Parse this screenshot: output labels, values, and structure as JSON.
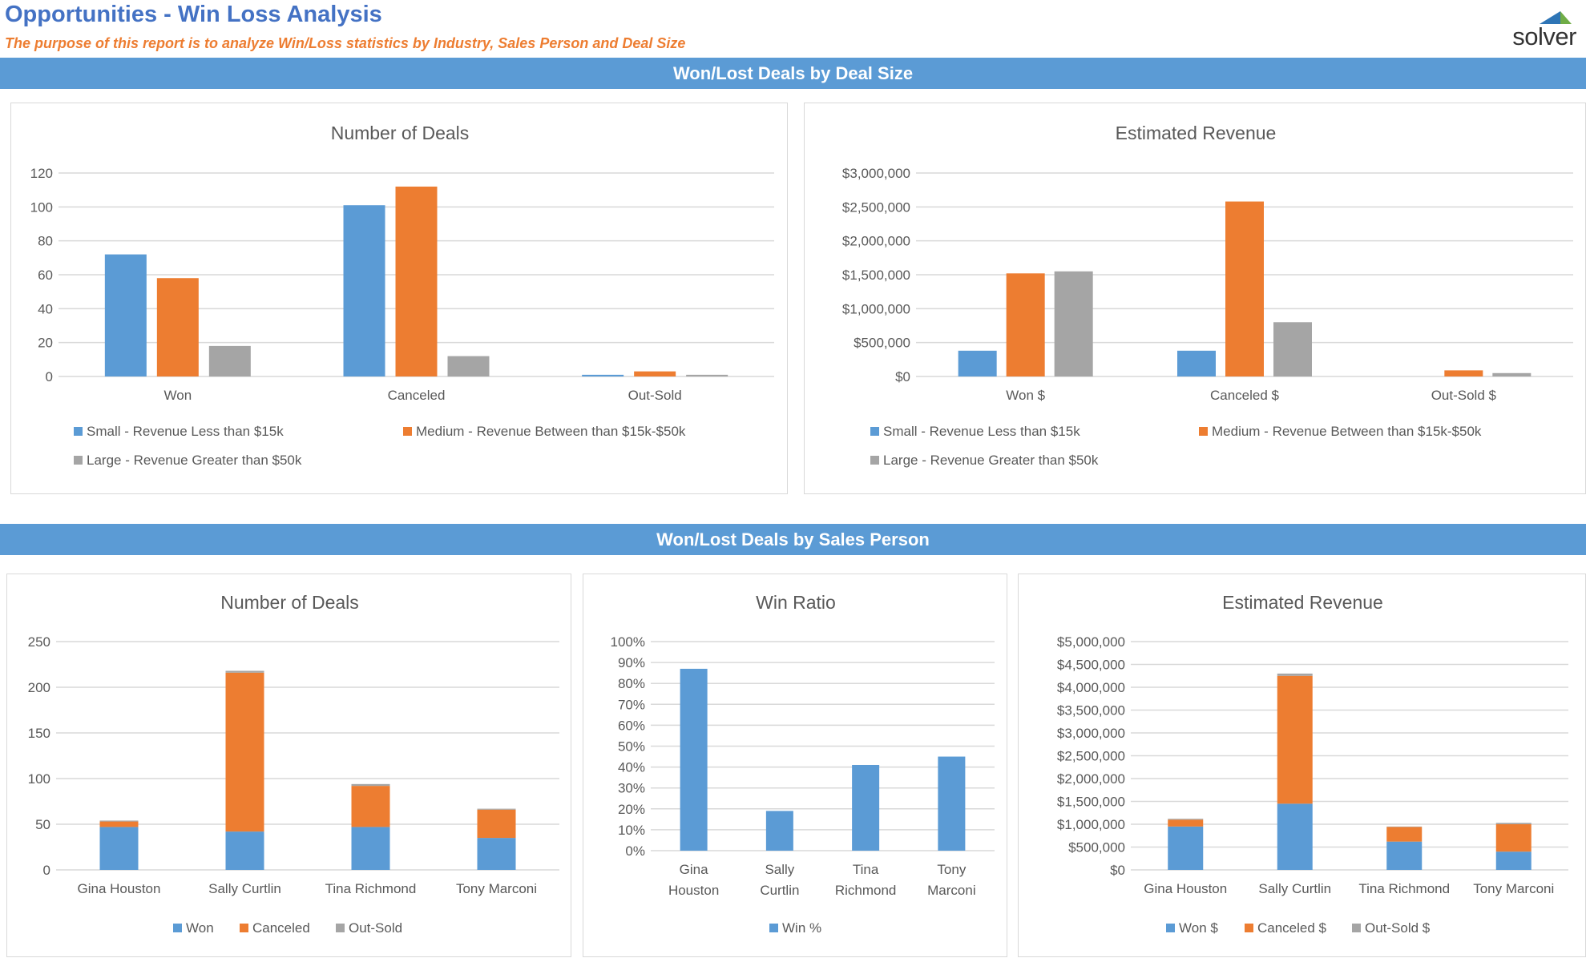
{
  "header": {
    "title": "Opportunities - Win Loss Analysis",
    "subtitle": "The purpose of this report is to analyze Win/Loss statistics by Industry, Sales Person and Deal Size",
    "logo_text": "solver"
  },
  "sections": {
    "deal_size": "Won/Lost Deals by Deal Size",
    "sales_person": "Won/Lost Deals by Sales Person"
  },
  "colors": {
    "blue": "#5B9BD5",
    "orange": "#ED7D31",
    "gray": "#A5A5A5",
    "title_blue": "#4472C4"
  },
  "chart_data": [
    {
      "type": "bar",
      "title": "Number of Deals",
      "categories": [
        "Won",
        "Canceled",
        "Out-Sold"
      ],
      "series": [
        {
          "name": "Small - Revenue Less than $15k",
          "color": "#5B9BD5",
          "values": [
            72,
            101,
            1
          ]
        },
        {
          "name": "Medium - Revenue Between than $15k-$50k",
          "color": "#ED7D31",
          "values": [
            58,
            112,
            3
          ]
        },
        {
          "name": "Large - Revenue Greater than $50k",
          "color": "#A5A5A5",
          "values": [
            18,
            12,
            1
          ]
        }
      ],
      "ylim": [
        0,
        120
      ],
      "ytick_labels": [
        "0",
        "20",
        "40",
        "60",
        "80",
        "100",
        "120"
      ],
      "grid": true,
      "legend": "bottom"
    },
    {
      "type": "bar",
      "title": "Estimated Revenue",
      "categories": [
        "Won $",
        "Canceled $",
        "Out-Sold $"
      ],
      "series": [
        {
          "name": "Small - Revenue Less than $15k",
          "color": "#5B9BD5",
          "values": [
            380000,
            380000,
            0
          ]
        },
        {
          "name": "Medium - Revenue Between than $15k-$50k",
          "color": "#ED7D31",
          "values": [
            1520000,
            2580000,
            90000
          ]
        },
        {
          "name": "Large - Revenue Greater than $50k",
          "color": "#A5A5A5",
          "values": [
            1550000,
            800000,
            50000
          ]
        }
      ],
      "ylim": [
        0,
        3000000
      ],
      "ytick_labels": [
        "$0",
        "$500,000",
        "$1,000,000",
        "$1,500,000",
        "$2,000,000",
        "$2,500,000",
        "$3,000,000"
      ],
      "grid": true,
      "legend": "bottom"
    },
    {
      "type": "bar",
      "stacked": true,
      "title": "Number of Deals",
      "categories": [
        "Gina Houston",
        "Sally Curtlin",
        "Tina Richmond",
        "Tony Marconi"
      ],
      "series": [
        {
          "name": "Won",
          "color": "#5B9BD5",
          "values": [
            47,
            42,
            47,
            35
          ]
        },
        {
          "name": "Canceled",
          "color": "#ED7D31",
          "values": [
            6,
            174,
            45,
            31
          ]
        },
        {
          "name": "Out-Sold",
          "color": "#A5A5A5",
          "values": [
            1,
            2,
            2,
            1
          ]
        }
      ],
      "ylim": [
        0,
        250
      ],
      "ytick_labels": [
        "0",
        "50",
        "100",
        "150",
        "200",
        "250"
      ],
      "grid": true,
      "legend": "bottom"
    },
    {
      "type": "bar",
      "title": "Win Ratio",
      "categories": [
        "Gina Houston",
        "Sally Curtlin",
        "Tina Richmond",
        "Tony Marconi"
      ],
      "series": [
        {
          "name": "Win %",
          "color": "#5B9BD5",
          "values": [
            87,
            19,
            41,
            45
          ]
        }
      ],
      "ylim": [
        0,
        100
      ],
      "ytick_labels": [
        "0%",
        "10%",
        "20%",
        "30%",
        "40%",
        "50%",
        "60%",
        "70%",
        "80%",
        "90%",
        "100%"
      ],
      "grid": true,
      "legend": "bottom"
    },
    {
      "type": "bar",
      "stacked": true,
      "title": "Estimated Revenue",
      "categories": [
        "Gina Houston",
        "Sally Curtlin",
        "Tina Richmond",
        "Tony Marconi"
      ],
      "series": [
        {
          "name": "Won $",
          "color": "#5B9BD5",
          "values": [
            950000,
            1450000,
            620000,
            400000
          ]
        },
        {
          "name": "Canceled $",
          "color": "#ED7D31",
          "values": [
            150000,
            2800000,
            320000,
            600000
          ]
        },
        {
          "name": "Out-Sold $",
          "color": "#A5A5A5",
          "values": [
            20000,
            50000,
            10000,
            30000
          ]
        }
      ],
      "ylim": [
        0,
        5000000
      ],
      "ytick_labels": [
        "$0",
        "$500,000",
        "$1,000,000",
        "$1,500,000",
        "$2,000,000",
        "$2,500,000",
        "$3,000,000",
        "$3,500,000",
        "$4,000,000",
        "$4,500,000",
        "$5,000,000"
      ],
      "grid": true,
      "legend": "bottom"
    }
  ]
}
